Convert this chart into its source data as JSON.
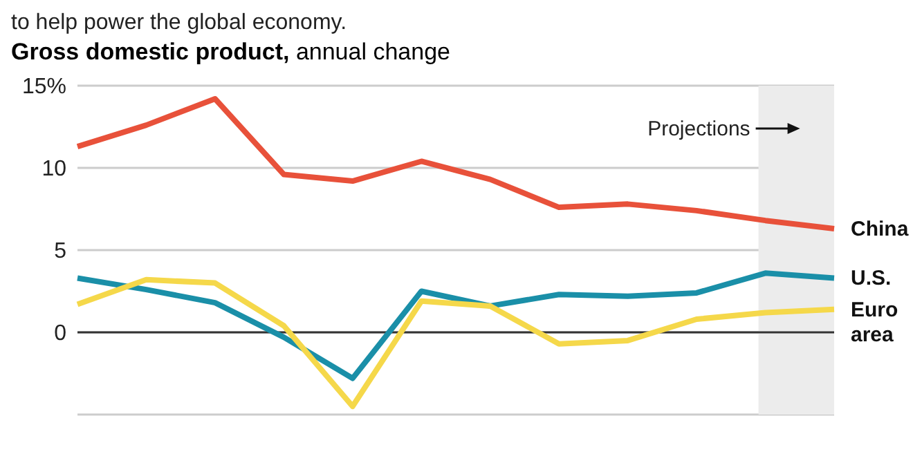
{
  "chart_data": {
    "type": "line",
    "title": "Gross domestic product,",
    "subtitle": "annual change",
    "annotations": [
      "to help power the global economy.",
      "Projections"
    ],
    "categories": [
      null,
      null,
      null,
      null,
      null,
      null,
      null,
      null,
      null,
      null,
      null,
      null
    ],
    "ylim": [
      -5,
      15
    ],
    "yticks": [
      0,
      5,
      10,
      {
        "value": 15,
        "label": "15%"
      }
    ],
    "grid": "y",
    "series": [
      {
        "name": "China",
        "color": "#e8513a",
        "values": [
          11.3,
          12.6,
          14.2,
          9.6,
          9.2,
          10.4,
          9.3,
          7.6,
          7.8,
          7.4,
          6.8,
          6.3
        ]
      },
      {
        "name": "U.S.",
        "color": "#1a8fa8",
        "values": [
          3.3,
          2.6,
          1.8,
          -0.3,
          -2.8,
          2.5,
          1.6,
          2.3,
          2.2,
          2.4,
          3.6,
          3.3
        ]
      },
      {
        "name": "Euro area",
        "color": "#f5d84a",
        "values": [
          1.7,
          3.2,
          3.0,
          0.4,
          -4.5,
          1.9,
          1.6,
          -0.7,
          -0.5,
          0.8,
          1.2,
          1.4
        ]
      }
    ],
    "ref_lines": [
      {
        "axis": "y",
        "value": 0,
        "color": "#333333"
      }
    ]
  }
}
